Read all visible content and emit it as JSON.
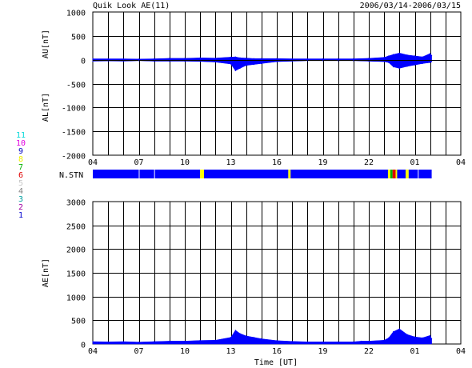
{
  "header": {
    "title": "Quik Look AE(11)",
    "date_range": "2006/03/14-2006/03/15"
  },
  "station_legend": [
    {
      "label": "11",
      "color": "#00d8d8"
    },
    {
      "label": "10",
      "color": "#e000e0"
    },
    {
      "label": "9",
      "color": "#0000c0"
    },
    {
      "label": "8",
      "color": "#f0f000"
    },
    {
      "label": "7",
      "color": "#00b000"
    },
    {
      "label": "6",
      "color": "#e00000"
    },
    {
      "label": "5",
      "color": "#c8c8c8"
    },
    {
      "label": "4",
      "color": "#808080"
    },
    {
      "label": "3",
      "color": "#00a0a0"
    },
    {
      "label": "2",
      "color": "#a000a0"
    },
    {
      "label": "1",
      "color": "#0000d0"
    }
  ],
  "chart_data": [
    {
      "type": "area",
      "panel": "AU/AL",
      "y_axis_labels": [
        "AU[nT]",
        "AL[nT]"
      ],
      "ylim": [
        -2000,
        1000
      ],
      "yticks": [
        "1000",
        "500",
        "0",
        "-500",
        "-1000",
        "-1500",
        "-2000"
      ],
      "xlim": [
        4,
        28
      ],
      "xtick_labels": [
        "04",
        "07",
        "10",
        "13",
        "16",
        "19",
        "22",
        "01",
        "04"
      ],
      "grid": true,
      "series": [
        {
          "color": "#0000ff",
          "x": [
            4.0,
            5.0,
            6.0,
            7.0,
            8.0,
            9.0,
            10.0,
            11.0,
            12.0,
            13.0,
            13.3,
            13.6,
            14.0,
            14.5,
            15.0,
            16.0,
            17.0,
            18.0,
            19.0,
            20.0,
            21.0,
            22.0,
            23.0,
            23.3,
            23.6,
            24.0,
            24.5,
            25.0,
            25.5,
            26.0,
            26.1
          ],
          "au": [
            20,
            20,
            20,
            15,
            20,
            30,
            30,
            40,
            35,
            55,
            60,
            40,
            35,
            25,
            25,
            25,
            20,
            20,
            20,
            20,
            20,
            30,
            50,
            80,
            110,
            140,
            100,
            80,
            60,
            130,
            90
          ],
          "al": [
            -30,
            -25,
            -30,
            -20,
            -30,
            -30,
            -30,
            -35,
            -50,
            -90,
            -230,
            -180,
            -120,
            -100,
            -80,
            -40,
            -30,
            -20,
            -20,
            -20,
            -20,
            -30,
            -40,
            -60,
            -150,
            -180,
            -140,
            -110,
            -80,
            -60,
            -40
          ]
        }
      ]
    },
    {
      "type": "stripe",
      "panel": "N.STN",
      "label": "N.STN",
      "segments": [
        {
          "start": 4.0,
          "end": 5.2,
          "color": "#0000ff"
        },
        {
          "start": 5.2,
          "end": 7.0,
          "color": "#0000ff"
        },
        {
          "start": 7.05,
          "end": 8.0,
          "color": "#0000ff"
        },
        {
          "start": 8.05,
          "end": 11.0,
          "color": "#0000ff"
        },
        {
          "start": 11.0,
          "end": 11.25,
          "color": "#ffff00"
        },
        {
          "start": 11.25,
          "end": 16.75,
          "color": "#0000ff"
        },
        {
          "start": 16.75,
          "end": 16.9,
          "color": "#ffff00"
        },
        {
          "start": 16.9,
          "end": 23.25,
          "color": "#0000ff"
        },
        {
          "start": 23.25,
          "end": 23.4,
          "color": "#ffff00"
        },
        {
          "start": 23.4,
          "end": 23.55,
          "color": "#00b000"
        },
        {
          "start": 23.55,
          "end": 23.75,
          "color": "#e00000"
        },
        {
          "start": 23.75,
          "end": 23.85,
          "color": "#ffff00"
        },
        {
          "start": 23.85,
          "end": 24.4,
          "color": "#0000ff"
        },
        {
          "start": 24.4,
          "end": 24.6,
          "color": "#ffff00"
        },
        {
          "start": 24.6,
          "end": 25.2,
          "color": "#0000ff"
        },
        {
          "start": 25.25,
          "end": 26.1,
          "color": "#0000ff"
        }
      ]
    },
    {
      "type": "area",
      "panel": "AE",
      "ylabel": "AE[nT]",
      "ylim": [
        0,
        3000
      ],
      "yticks": [
        "3000",
        "2500",
        "2000",
        "1500",
        "1000",
        "500",
        "0"
      ],
      "xlim": [
        4,
        28
      ],
      "xtick_labels": [
        "04",
        "07",
        "10",
        "13",
        "16",
        "19",
        "22",
        "01",
        "04"
      ],
      "xlabel": "Time [UT]",
      "grid": true,
      "series": [
        {
          "color": "#0000ff",
          "x": [
            4.0,
            5.0,
            6.0,
            7.0,
            8.0,
            9.0,
            10.0,
            11.0,
            12.0,
            13.0,
            13.3,
            13.6,
            14.0,
            14.5,
            15.0,
            16.0,
            17.0,
            18.0,
            19.0,
            20.0,
            21.0,
            21.5,
            22.0,
            23.0,
            23.3,
            23.6,
            24.0,
            24.5,
            25.0,
            25.5,
            26.0,
            26.1
          ],
          "values": [
            50,
            45,
            50,
            40,
            50,
            60,
            60,
            75,
            80,
            140,
            290,
            220,
            170,
            140,
            110,
            70,
            55,
            45,
            45,
            45,
            45,
            60,
            60,
            80,
            130,
            260,
            320,
            200,
            150,
            130,
            180,
            110
          ]
        }
      ]
    }
  ]
}
